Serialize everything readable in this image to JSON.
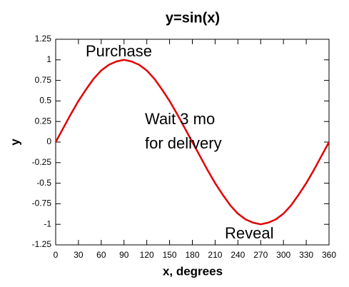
{
  "chart_data": {
    "type": "line",
    "title": "y=sin(x)",
    "x_label": "x, degrees",
    "y_label": "y",
    "x": [
      0,
      10,
      20,
      30,
      40,
      50,
      60,
      70,
      80,
      90,
      100,
      110,
      120,
      130,
      140,
      150,
      160,
      170,
      180,
      190,
      200,
      210,
      220,
      230,
      240,
      250,
      260,
      270,
      280,
      290,
      300,
      310,
      320,
      330,
      340,
      350,
      360
    ],
    "series": [
      {
        "color": "#e00000",
        "values": [
          0,
          0.17,
          0.34,
          0.5,
          0.64,
          0.77,
          0.87,
          0.94,
          0.98,
          1,
          0.98,
          0.94,
          0.87,
          0.77,
          0.64,
          0.5,
          0.34,
          0.17,
          0,
          -0.17,
          -0.34,
          -0.5,
          -0.64,
          -0.77,
          -0.87,
          -0.94,
          -0.98,
          -1,
          -0.98,
          -0.94,
          -0.87,
          -0.77,
          -0.64,
          -0.5,
          -0.34,
          -0.17,
          0
        ]
      }
    ],
    "xlim": [
      0,
      360
    ],
    "xticks": [
      0,
      30,
      60,
      90,
      120,
      150,
      180,
      210,
      240,
      270,
      300,
      330,
      360
    ],
    "ylim": [
      -1.25,
      1.25
    ],
    "yticks": [
      -1.25,
      -1,
      -0.75,
      -0.5,
      -0.25,
      0,
      0.25,
      0.5,
      0.75,
      1,
      1.25
    ],
    "annotations": [
      {
        "lines": [
          "Purchase"
        ]
      },
      {
        "lines": [
          "Wait 3 mo",
          "for delivery"
        ]
      },
      {
        "lines": [
          "Reveal"
        ]
      }
    ]
  }
}
